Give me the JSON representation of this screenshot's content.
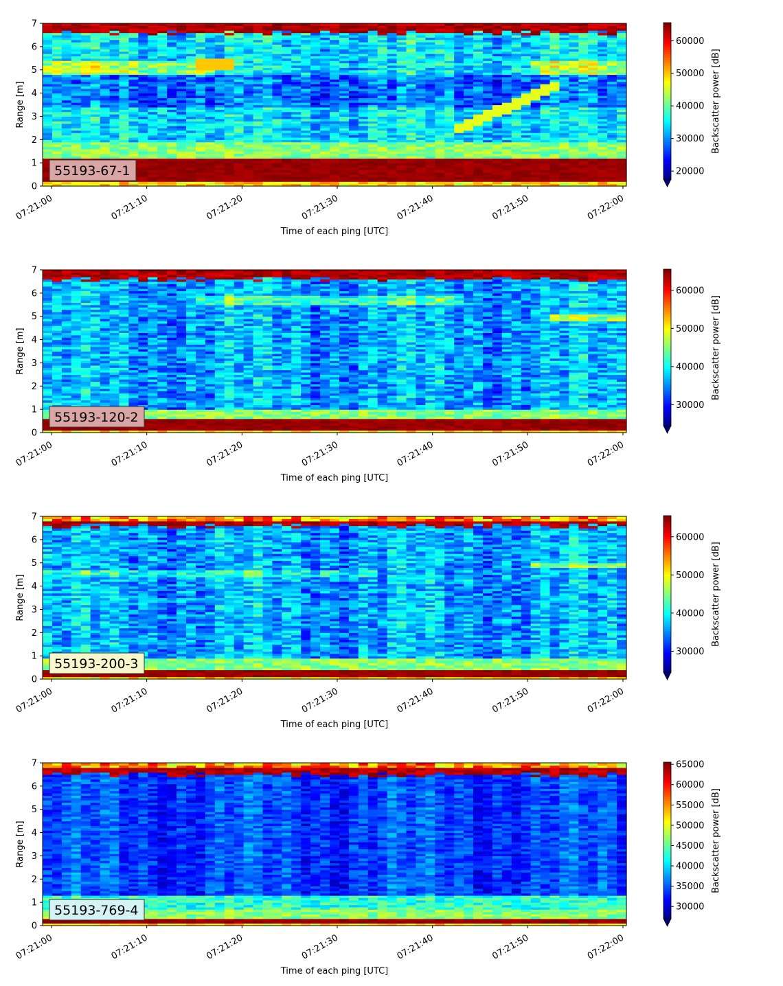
{
  "chart_data": [
    {
      "type": "heatmap",
      "label": "55193-67-1",
      "xlabel": "Time of each ping [UTC]",
      "ylabel": "Range [m]",
      "colorbar_label": "Backscatter power [dB]",
      "xticks": [
        "07:21:00",
        "07:21:10",
        "07:21:20",
        "07:21:30",
        "07:21:40",
        "07:21:50",
        "07:22:00"
      ],
      "yticks": [
        0,
        1,
        2,
        3,
        4,
        5,
        6,
        7
      ],
      "ylim": [
        0,
        7
      ],
      "clim": [
        17500,
        65535
      ],
      "cbar_ticks": [
        20000,
        30000,
        40000,
        50000,
        60000
      ],
      "colormap": "jet",
      "colorbar_extend": "min",
      "label_box_color": "#d9a5a5",
      "features": {
        "bottom_band": [
          0.2,
          1.2
        ],
        "bright_band": [
          1.2,
          1.9
        ],
        "top_band": 6.6,
        "trace_slope": {
          "t_start": 43,
          "t_end": 53,
          "r_start": 2.5,
          "r_end": 4.3
        },
        "layer_5m": true
      }
    },
    {
      "type": "heatmap",
      "label": "55193-120-2",
      "xlabel": "Time of each ping [UTC]",
      "ylabel": "Range [m]",
      "colorbar_label": "Backscatter power [dB]",
      "xticks": [
        "07:21:00",
        "07:21:10",
        "07:21:20",
        "07:21:30",
        "07:21:40",
        "07:21:50",
        "07:22:00"
      ],
      "yticks": [
        0,
        1,
        2,
        3,
        4,
        5,
        6,
        7
      ],
      "ylim": [
        0,
        7
      ],
      "clim": [
        24500,
        65535
      ],
      "cbar_ticks": [
        30000,
        40000,
        50000,
        60000
      ],
      "colormap": "jet",
      "colorbar_extend": "min",
      "label_box_color": "#d9a5a5",
      "features": {
        "bottom_band": [
          0.1,
          0.6
        ],
        "bright_band": [
          0.6,
          1.0
        ],
        "top_band": 6.6,
        "layer_5_7m": true
      }
    },
    {
      "type": "heatmap",
      "label": "55193-200-3",
      "xlabel": "Time of each ping [UTC]",
      "ylabel": "Range [m]",
      "colorbar_label": "Backscatter power [dB]",
      "xticks": [
        "07:21:00",
        "07:21:10",
        "07:21:20",
        "07:21:30",
        "07:21:40",
        "07:21:50",
        "07:22:00"
      ],
      "yticks": [
        0,
        1,
        2,
        3,
        4,
        5,
        6,
        7
      ],
      "ylim": [
        0,
        7
      ],
      "clim": [
        24500,
        65535
      ],
      "cbar_ticks": [
        30000,
        40000,
        50000,
        60000
      ],
      "colormap": "jet",
      "colorbar_extend": "min",
      "label_box_color": "#f7f7cc",
      "features": {
        "bottom_band": [
          0.1,
          0.4
        ],
        "bright_band": [
          0.4,
          0.9
        ],
        "top_band": 6.6,
        "layer_4_6m": true
      }
    },
    {
      "type": "heatmap",
      "label": "55193-769-4",
      "xlabel": "Time of each ping [UTC]",
      "ylabel": "Range [m]",
      "colorbar_label": "Backscatter power [dB]",
      "xticks": [
        "07:21:00",
        "07:21:10",
        "07:21:20",
        "07:21:30",
        "07:21:40",
        "07:21:50",
        "07:22:00"
      ],
      "yticks": [
        0,
        1,
        2,
        3,
        4,
        5,
        6,
        7
      ],
      "ylim": [
        0,
        7
      ],
      "clim": [
        27000,
        65535
      ],
      "cbar_ticks": [
        30000,
        35000,
        40000,
        45000,
        50000,
        55000,
        60000,
        65000
      ],
      "colormap": "jet",
      "colorbar_extend": "min",
      "label_box_color": "#d4f3f5",
      "features": {
        "bottom_band": [
          0.1,
          0.3
        ],
        "bright_band": [
          0.3,
          0.7
        ],
        "top_band": 6.5,
        "dark_mid": true
      }
    }
  ]
}
